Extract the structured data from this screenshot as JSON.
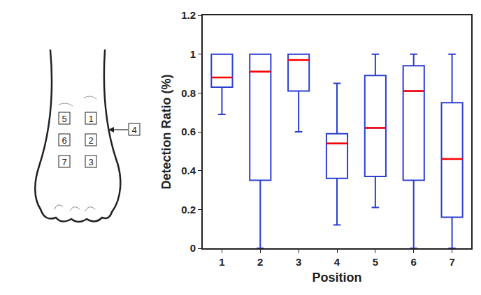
{
  "chart_data": {
    "type": "box",
    "categories": [
      "1",
      "2",
      "3",
      "4",
      "5",
      "6",
      "7"
    ],
    "min": [
      0.69,
      0,
      0.6,
      0.12,
      0.21,
      0,
      0
    ],
    "q1": [
      0.83,
      0.35,
      0.81,
      0.36,
      0.37,
      0.35,
      0.16
    ],
    "median": [
      0.88,
      0.91,
      0.97,
      0.54,
      0.62,
      0.81,
      0.46
    ],
    "q3": [
      1,
      1,
      1,
      0.59,
      0.89,
      0.94,
      0.75
    ],
    "max": [
      1,
      1,
      1,
      0.85,
      1,
      1,
      1
    ],
    "color": "#2b3fd0",
    "x_label": "Position",
    "y_label": "Detection Ratio (%)",
    "ylim": [
      0,
      1.2
    ],
    "yticks": [
      0,
      0.2,
      0.4,
      0.6,
      0.8,
      1,
      1.2
    ],
    "grid": false
  }
}
